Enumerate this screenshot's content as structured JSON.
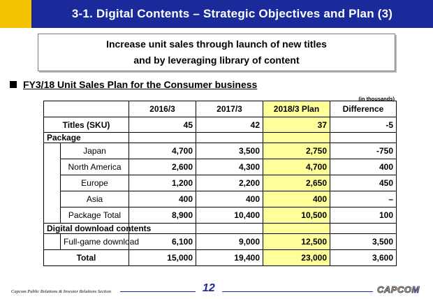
{
  "header": {
    "title": "3-1. Digital Contents – Strategic Objectives and Plan (3)"
  },
  "banner": {
    "line1": "Increase unit sales through launch of new titles",
    "line2": "and by leveraging library of content"
  },
  "section": {
    "heading": "FY3/18 Unit Sales Plan for the Consumer business",
    "unit": "(in thousands)"
  },
  "table": {
    "columns": [
      "2016/3",
      "2017/3",
      "2018/3 Plan",
      "Difference"
    ],
    "titles": {
      "label": "Titles (SKU)",
      "values": [
        "45",
        "42",
        "37",
        "-5"
      ]
    },
    "package_label": "Package",
    "package_rows": [
      {
        "label": "Japan",
        "values": [
          "4,700",
          "3,500",
          "2,750",
          "-750"
        ]
      },
      {
        "label": "North America",
        "values": [
          "2,600",
          "4,300",
          "4,700",
          "400"
        ]
      },
      {
        "label": "Europe",
        "values": [
          "1,200",
          "2,200",
          "2,650",
          "450"
        ]
      },
      {
        "label": "Asia",
        "values": [
          "400",
          "400",
          "400",
          "–"
        ]
      },
      {
        "label": "Package Total",
        "values": [
          "8,900",
          "10,400",
          "10,500",
          "100"
        ]
      }
    ],
    "digital_label": "Digital download contents",
    "digital_rows": [
      {
        "label": "Full-game download",
        "values": [
          "6,100",
          "9,000",
          "12,500",
          "3,500"
        ]
      }
    ],
    "total": {
      "label": "Total",
      "values": [
        "15,000",
        "19,400",
        "23,000",
        "3,600"
      ]
    }
  },
  "footer": {
    "left": "Capcom Public Relations & Investor Relations Section",
    "page": "12",
    "logo": "CAPCOM"
  },
  "colors": {
    "title_bar": "#1a2a9a",
    "accent": "#f5c400",
    "highlight": "#ffff99"
  }
}
